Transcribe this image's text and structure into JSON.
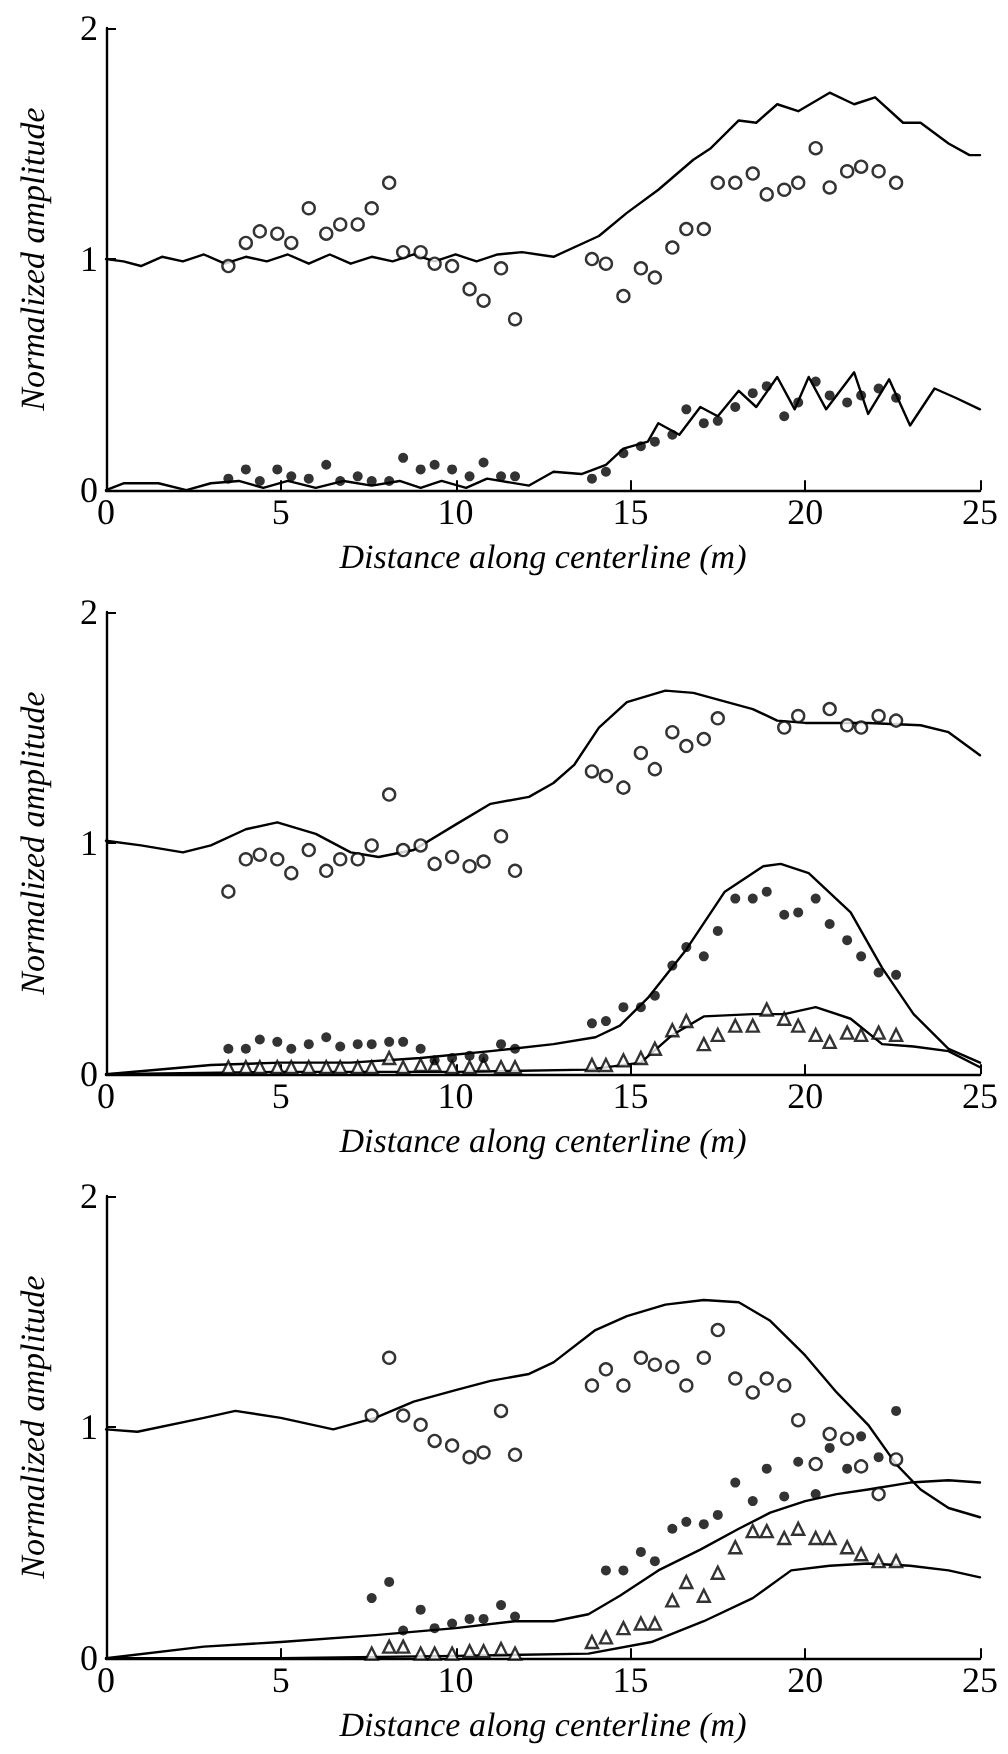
{
  "chart_data": [
    {
      "type": "scatter",
      "xlabel": "Distance along centerline (m)",
      "ylabel": "Normalized amplitude",
      "xlim": [
        0,
        25
      ],
      "xticks": [
        0,
        5,
        10,
        15,
        20,
        25
      ],
      "ylim": [
        0,
        2
      ],
      "yticks": [
        0,
        1,
        2
      ],
      "series": [
        {
          "type": "line",
          "color": "#000000",
          "marker": "none",
          "line_style": "solid",
          "x": [
            0,
            0.5,
            1.0,
            1.6,
            2.2,
            2.8,
            3.4,
            4.0,
            4.6,
            5.2,
            5.8,
            6.4,
            7.0,
            7.6,
            8.2,
            8.8,
            9.4,
            10.0,
            10.6,
            11.2,
            11.9,
            12.8,
            14.1,
            14.9,
            15.8,
            16.8,
            17.3,
            18.1,
            18.6,
            19.2,
            19.8,
            20.7,
            21.4,
            22.0,
            22.8,
            23.3,
            24.1,
            24.7,
            25
          ],
          "values": [
            1.0,
            0.99,
            0.97,
            1.01,
            0.99,
            1.02,
            0.98,
            1.01,
            0.99,
            1.02,
            0.98,
            1.02,
            0.98,
            1.01,
            0.99,
            1.02,
            0.99,
            1.02,
            0.99,
            1.02,
            1.03,
            1.01,
            1.1,
            1.2,
            1.3,
            1.43,
            1.48,
            1.6,
            1.59,
            1.67,
            1.64,
            1.72,
            1.67,
            1.7,
            1.59,
            1.59,
            1.5,
            1.45,
            1.45
          ]
        },
        {
          "type": "line",
          "color": "#000000",
          "marker": "none",
          "line_style": "solid",
          "x": [
            0,
            0.5,
            1.5,
            2.3,
            3.0,
            3.8,
            4.5,
            5.2,
            6.0,
            6.8,
            7.6,
            8.4,
            9.0,
            9.6,
            10.3,
            10.9,
            12.1,
            12.8,
            13.6,
            14.3,
            14.8,
            15.5,
            15.8,
            16.4,
            17.0,
            17.5,
            18.1,
            18.6,
            19.2,
            19.7,
            20.1,
            20.6,
            21.4,
            21.8,
            22.4,
            23.0,
            23.7,
            24.3,
            25
          ],
          "values": [
            0.0,
            0.03,
            0.03,
            0.0,
            0.03,
            0.04,
            0.01,
            0.04,
            0.01,
            0.04,
            0.02,
            0.04,
            0.01,
            0.04,
            0.01,
            0.05,
            0.02,
            0.08,
            0.07,
            0.11,
            0.18,
            0.21,
            0.29,
            0.24,
            0.36,
            0.32,
            0.43,
            0.36,
            0.49,
            0.35,
            0.49,
            0.35,
            0.51,
            0.33,
            0.48,
            0.28,
            0.44,
            0.4,
            0.35
          ]
        },
        {
          "type": "scatter",
          "color": "#000000",
          "marker": "circle-open",
          "x": [
            3.5,
            4.0,
            4.4,
            4.9,
            5.3,
            5.8,
            6.3,
            6.7,
            7.2,
            7.6,
            8.1,
            8.5,
            9.0,
            9.4,
            9.9,
            10.4,
            10.8,
            11.3,
            11.7,
            13.9,
            14.3,
            14.8,
            15.3,
            15.7,
            16.2,
            16.6,
            17.1,
            17.5,
            18.0,
            18.5,
            18.9,
            19.4,
            19.8,
            20.3,
            20.7,
            21.2,
            21.6,
            22.1,
            22.6
          ],
          "values": [
            0.97,
            1.07,
            1.12,
            1.11,
            1.07,
            1.22,
            1.11,
            1.15,
            1.15,
            1.22,
            1.33,
            1.03,
            1.03,
            0.98,
            0.97,
            0.87,
            0.82,
            0.96,
            0.74,
            1.0,
            0.98,
            0.84,
            0.96,
            0.92,
            1.05,
            1.13,
            1.13,
            1.33,
            1.33,
            1.37,
            1.28,
            1.3,
            1.33,
            1.48,
            1.31,
            1.38,
            1.4,
            1.38,
            1.33
          ]
        },
        {
          "type": "scatter",
          "color": "#000000",
          "marker": "circle",
          "x": [
            3.5,
            4.0,
            4.4,
            4.9,
            5.3,
            5.8,
            6.3,
            6.7,
            7.2,
            7.6,
            8.1,
            8.5,
            9.0,
            9.4,
            9.9,
            10.4,
            10.8,
            11.3,
            11.7,
            13.9,
            14.3,
            14.8,
            15.3,
            15.7,
            16.2,
            16.6,
            17.1,
            17.5,
            18.0,
            18.5,
            18.9,
            19.4,
            19.8,
            20.3,
            20.7,
            21.2,
            21.6,
            22.1,
            22.6
          ],
          "values": [
            0.05,
            0.09,
            0.04,
            0.09,
            0.06,
            0.05,
            0.11,
            0.04,
            0.06,
            0.04,
            0.04,
            0.14,
            0.09,
            0.11,
            0.09,
            0.06,
            0.12,
            0.06,
            0.06,
            0.05,
            0.08,
            0.16,
            0.19,
            0.21,
            0.24,
            0.35,
            0.29,
            0.3,
            0.36,
            0.42,
            0.45,
            0.32,
            0.38,
            0.47,
            0.41,
            0.38,
            0.41,
            0.44,
            0.4
          ]
        }
      ]
    },
    {
      "type": "scatter",
      "xlabel": "Distance along centerline (m)",
      "ylabel": "Normalized amplitude",
      "xlim": [
        0,
        25
      ],
      "xticks": [
        0,
        5,
        10,
        15,
        20,
        25
      ],
      "ylim": [
        0,
        2
      ],
      "yticks": [
        0,
        1,
        2
      ],
      "series": [
        {
          "type": "line",
          "color": "#000000",
          "marker": "none",
          "line_style": "solid",
          "x": [
            0,
            1,
            2.2,
            3,
            4,
            4.9,
            6,
            7,
            7.8,
            8.8,
            10,
            11,
            12.1,
            12.8,
            13.4,
            14.1,
            14.9,
            16.0,
            16.8,
            18.5,
            19.2,
            20.0,
            21.8,
            23.3,
            24.1,
            25
          ],
          "values": [
            1.01,
            0.99,
            0.96,
            0.99,
            1.06,
            1.09,
            1.04,
            0.96,
            0.94,
            0.97,
            1.08,
            1.17,
            1.2,
            1.26,
            1.34,
            1.5,
            1.61,
            1.66,
            1.65,
            1.58,
            1.53,
            1.52,
            1.52,
            1.51,
            1.48,
            1.38
          ]
        },
        {
          "type": "line",
          "color": "#000000",
          "marker": "none",
          "line_style": "solid",
          "x": [
            0,
            3,
            5,
            7,
            9,
            11,
            12.8,
            14.0,
            14.7,
            15.5,
            16.6,
            17.7,
            18.8,
            19.3,
            20.1,
            21.3,
            22.2,
            23.1,
            24.1,
            25
          ],
          "values": [
            0.0,
            0.04,
            0.05,
            0.05,
            0.07,
            0.1,
            0.13,
            0.16,
            0.21,
            0.33,
            0.54,
            0.79,
            0.9,
            0.91,
            0.87,
            0.7,
            0.46,
            0.26,
            0.11,
            0.05
          ]
        },
        {
          "type": "line",
          "color": "#000000",
          "marker": "none",
          "line_style": "solid",
          "x": [
            0,
            5,
            10,
            13.8,
            15.3,
            16.2,
            17.1,
            18.5,
            19.4,
            20.3,
            21.3,
            22.2,
            23.1,
            24.1,
            25
          ],
          "values": [
            0.0,
            0.01,
            0.01,
            0.02,
            0.05,
            0.17,
            0.25,
            0.26,
            0.26,
            0.29,
            0.24,
            0.13,
            0.12,
            0.1,
            0.03
          ]
        },
        {
          "type": "scatter",
          "color": "#000000",
          "marker": "circle-open",
          "x": [
            3.5,
            4.0,
            4.4,
            4.9,
            5.3,
            5.8,
            6.3,
            6.7,
            7.2,
            7.6,
            8.1,
            8.5,
            9.0,
            9.4,
            9.9,
            10.4,
            10.8,
            11.3,
            11.7,
            13.9,
            14.3,
            14.8,
            15.3,
            15.7,
            16.2,
            16.6,
            17.1,
            17.5,
            19.4,
            19.8,
            20.7,
            21.2,
            21.6,
            22.1,
            22.6
          ],
          "values": [
            0.79,
            0.93,
            0.95,
            0.93,
            0.87,
            0.97,
            0.88,
            0.93,
            0.93,
            0.99,
            1.21,
            0.97,
            0.99,
            0.91,
            0.94,
            0.9,
            0.92,
            1.03,
            0.88,
            1.31,
            1.29,
            1.24,
            1.39,
            1.32,
            1.48,
            1.42,
            1.45,
            1.54,
            1.5,
            1.55,
            1.58,
            1.51,
            1.5,
            1.55,
            1.53
          ]
        },
        {
          "type": "scatter",
          "color": "#000000",
          "marker": "circle",
          "x": [
            3.5,
            4.0,
            4.4,
            4.9,
            5.3,
            5.8,
            6.3,
            6.7,
            7.2,
            7.6,
            8.1,
            8.5,
            9.0,
            9.4,
            9.9,
            10.4,
            10.8,
            11.3,
            11.7,
            13.9,
            14.3,
            14.8,
            15.3,
            15.7,
            16.2,
            16.6,
            17.1,
            17.5,
            18.0,
            18.5,
            18.9,
            19.4,
            19.8,
            20.3,
            20.7,
            21.2,
            21.6,
            22.1,
            22.6
          ],
          "values": [
            0.11,
            0.11,
            0.15,
            0.14,
            0.11,
            0.13,
            0.16,
            0.12,
            0.13,
            0.13,
            0.14,
            0.14,
            0.11,
            0.06,
            0.07,
            0.08,
            0.07,
            0.13,
            0.11,
            0.22,
            0.23,
            0.29,
            0.29,
            0.34,
            0.47,
            0.55,
            0.51,
            0.62,
            0.76,
            0.76,
            0.79,
            0.69,
            0.7,
            0.76,
            0.65,
            0.58,
            0.51,
            0.44,
            0.43
          ]
        },
        {
          "type": "scatter",
          "color": "#000000",
          "marker": "triangle-open",
          "x": [
            3.5,
            4.0,
            4.4,
            4.9,
            5.3,
            5.8,
            6.3,
            6.7,
            7.2,
            7.6,
            8.1,
            8.5,
            9.0,
            9.4,
            9.9,
            10.4,
            10.8,
            11.3,
            11.7,
            13.9,
            14.3,
            14.8,
            15.3,
            15.7,
            16.2,
            16.6,
            17.1,
            17.5,
            18.0,
            18.5,
            18.9,
            19.4,
            19.8,
            20.3,
            20.7,
            21.2,
            21.6,
            22.1,
            22.6
          ],
          "values": [
            0.03,
            0.03,
            0.03,
            0.03,
            0.03,
            0.03,
            0.03,
            0.03,
            0.03,
            0.03,
            0.07,
            0.03,
            0.04,
            0.04,
            0.03,
            0.03,
            0.04,
            0.03,
            0.03,
            0.04,
            0.04,
            0.06,
            0.07,
            0.11,
            0.19,
            0.23,
            0.13,
            0.17,
            0.21,
            0.21,
            0.28,
            0.24,
            0.21,
            0.17,
            0.14,
            0.18,
            0.17,
            0.18,
            0.17
          ]
        }
      ]
    },
    {
      "type": "scatter",
      "xlabel": "Distance along centerline (m)",
      "ylabel": "Normalized amplitude",
      "xlim": [
        0,
        25
      ],
      "xticks": [
        0,
        5,
        10,
        15,
        20,
        25
      ],
      "ylim": [
        0,
        2
      ],
      "yticks": [
        0,
        1,
        2
      ],
      "series": [
        {
          "type": "line",
          "color": "#000000",
          "marker": "none",
          "line_style": "solid",
          "x": [
            0,
            0.9,
            2.8,
            3.7,
            5.0,
            6.5,
            7.7,
            8.8,
            10.0,
            11.0,
            12.1,
            12.8,
            14.0,
            14.9,
            16.0,
            17.1,
            18.1,
            19.0,
            20.0,
            20.9,
            21.8,
            22.6,
            23.3,
            24.1,
            25
          ],
          "values": [
            0.99,
            0.98,
            1.04,
            1.07,
            1.04,
            0.99,
            1.04,
            1.11,
            1.16,
            1.2,
            1.23,
            1.28,
            1.42,
            1.48,
            1.53,
            1.55,
            1.54,
            1.46,
            1.31,
            1.15,
            1.01,
            0.84,
            0.73,
            0.65,
            0.61
          ]
        },
        {
          "type": "line",
          "color": "#000000",
          "marker": "none",
          "line_style": "solid",
          "x": [
            0,
            2.8,
            5.0,
            7.7,
            10.0,
            11.7,
            12.8,
            13.8,
            14.7,
            15.8,
            17.0,
            18.1,
            19.0,
            20.0,
            20.9,
            21.8,
            23.0,
            24.1,
            25
          ],
          "values": [
            0.0,
            0.05,
            0.07,
            0.1,
            0.13,
            0.16,
            0.16,
            0.19,
            0.27,
            0.38,
            0.47,
            0.56,
            0.63,
            0.68,
            0.71,
            0.73,
            0.76,
            0.77,
            0.76
          ]
        },
        {
          "type": "line",
          "color": "#000000",
          "marker": "none",
          "line_style": "solid",
          "x": [
            0,
            5,
            10,
            13.8,
            15.6,
            17.1,
            18.5,
            19.6,
            20.7,
            21.8,
            23.0,
            24.1,
            25
          ],
          "values": [
            0.0,
            0.0,
            0.01,
            0.02,
            0.07,
            0.16,
            0.26,
            0.38,
            0.4,
            0.41,
            0.4,
            0.38,
            0.35
          ]
        },
        {
          "type": "scatter",
          "color": "#000000",
          "marker": "circle-open",
          "x": [
            7.6,
            8.1,
            8.5,
            9.0,
            9.4,
            9.9,
            10.4,
            10.8,
            11.3,
            11.7,
            13.9,
            14.3,
            14.8,
            15.3,
            15.7,
            16.2,
            16.6,
            17.1,
            17.5,
            18.0,
            18.5,
            18.9,
            19.4,
            19.8,
            20.3,
            20.7,
            21.2,
            21.6,
            22.1,
            22.6
          ],
          "values": [
            1.05,
            1.3,
            1.05,
            1.01,
            0.94,
            0.92,
            0.87,
            0.89,
            1.07,
            0.88,
            1.18,
            1.25,
            1.18,
            1.3,
            1.27,
            1.26,
            1.18,
            1.3,
            1.42,
            1.21,
            1.15,
            1.21,
            1.18,
            1.03,
            0.84,
            0.97,
            0.95,
            0.83,
            0.71,
            0.86
          ]
        },
        {
          "type": "scatter",
          "color": "#000000",
          "marker": "circle",
          "x": [
            7.6,
            8.1,
            8.5,
            9.0,
            9.4,
            9.9,
            10.4,
            10.8,
            11.3,
            11.7,
            14.3,
            14.8,
            15.3,
            15.7,
            16.2,
            16.6,
            17.1,
            17.5,
            18.0,
            18.5,
            18.9,
            19.4,
            19.8,
            20.3,
            20.7,
            21.2,
            21.6,
            22.1,
            22.6
          ],
          "values": [
            0.26,
            0.33,
            0.12,
            0.21,
            0.13,
            0.15,
            0.17,
            0.17,
            0.23,
            0.18,
            0.38,
            0.38,
            0.46,
            0.42,
            0.56,
            0.59,
            0.58,
            0.62,
            0.76,
            0.68,
            0.82,
            0.7,
            0.85,
            0.71,
            0.91,
            0.82,
            0.96,
            0.87,
            1.07
          ]
        },
        {
          "type": "scatter",
          "color": "#000000",
          "marker": "triangle-open",
          "x": [
            7.6,
            8.1,
            8.5,
            9.0,
            9.4,
            9.9,
            10.4,
            10.8,
            11.3,
            11.7,
            13.9,
            14.3,
            14.8,
            15.3,
            15.7,
            16.2,
            16.6,
            17.1,
            17.5,
            18.0,
            18.5,
            18.9,
            19.4,
            19.8,
            20.3,
            20.7,
            21.2,
            21.6,
            22.1,
            22.6
          ],
          "values": [
            0.02,
            0.05,
            0.05,
            0.02,
            0.02,
            0.02,
            0.03,
            0.03,
            0.04,
            0.02,
            0.07,
            0.09,
            0.13,
            0.15,
            0.15,
            0.25,
            0.33,
            0.27,
            0.37,
            0.48,
            0.55,
            0.55,
            0.52,
            0.56,
            0.52,
            0.52,
            0.48,
            0.45,
            0.42,
            0.42
          ]
        }
      ]
    }
  ]
}
